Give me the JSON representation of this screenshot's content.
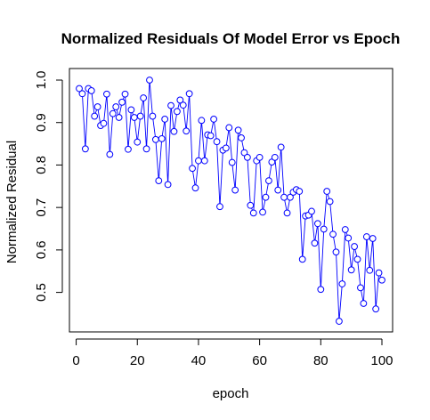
{
  "chart_data": {
    "type": "line",
    "title": "Normalized Residuals Of Model Error vs Epoch",
    "xlabel": "epoch",
    "ylabel": "Normalized Residual",
    "xlim": [
      1,
      100
    ],
    "ylim": [
      0.43,
      1.0
    ],
    "xticks": [
      0,
      20,
      40,
      60,
      80,
      100
    ],
    "yticks": [
      0.5,
      0.6,
      0.7,
      0.8,
      0.9,
      1.0
    ],
    "xtick_labels": [
      "0",
      "20",
      "40",
      "60",
      "80",
      "100"
    ],
    "ytick_labels": [
      "0.5",
      "0.6",
      "0.7",
      "0.8",
      "0.9",
      "1.0"
    ],
    "grid": false,
    "series": [
      {
        "color": "#0000ff",
        "marker": "open-circle",
        "x": [
          1,
          2,
          3,
          4,
          5,
          6,
          7,
          8,
          9,
          10,
          11,
          12,
          13,
          14,
          15,
          16,
          17,
          18,
          19,
          20,
          21,
          22,
          23,
          24,
          25,
          26,
          27,
          28,
          29,
          30,
          31,
          32,
          33,
          34,
          35,
          36,
          37,
          38,
          39,
          40,
          41,
          42,
          43,
          44,
          45,
          46,
          47,
          48,
          49,
          50,
          51,
          52,
          53,
          54,
          55,
          56,
          57,
          58,
          59,
          60,
          61,
          62,
          63,
          64,
          65,
          66,
          67,
          68,
          69,
          70,
          71,
          72,
          73,
          74,
          75,
          76,
          77,
          78,
          79,
          80,
          81,
          82,
          83,
          84,
          85,
          86,
          87,
          88,
          89,
          90,
          91,
          92,
          93,
          94,
          95,
          96,
          97,
          98,
          99,
          100
        ],
        "values": [
          0.98,
          0.968,
          0.838,
          0.98,
          0.975,
          0.915,
          0.937,
          0.893,
          0.898,
          0.967,
          0.825,
          0.921,
          0.937,
          0.912,
          0.948,
          0.967,
          0.837,
          0.93,
          0.912,
          0.854,
          0.915,
          0.958,
          0.838,
          1.0,
          0.915,
          0.86,
          0.763,
          0.862,
          0.908,
          0.754,
          0.94,
          0.879,
          0.926,
          0.953,
          0.941,
          0.88,
          0.968,
          0.792,
          0.746,
          0.81,
          0.905,
          0.81,
          0.871,
          0.869,
          0.908,
          0.855,
          0.702,
          0.835,
          0.84,
          0.888,
          0.806,
          0.741,
          0.882,
          0.864,
          0.829,
          0.818,
          0.705,
          0.687,
          0.81,
          0.818,
          0.689,
          0.724,
          0.763,
          0.807,
          0.818,
          0.741,
          0.842,
          0.724,
          0.687,
          0.724,
          0.736,
          0.742,
          0.738,
          0.578,
          0.68,
          0.682,
          0.691,
          0.616,
          0.662,
          0.507,
          0.649,
          0.738,
          0.714,
          0.637,
          0.595,
          0.432,
          0.52,
          0.648,
          0.628,
          0.553,
          0.608,
          0.578,
          0.511,
          0.474,
          0.631,
          0.552,
          0.627,
          0.461,
          0.546,
          0.529
        ]
      }
    ]
  }
}
